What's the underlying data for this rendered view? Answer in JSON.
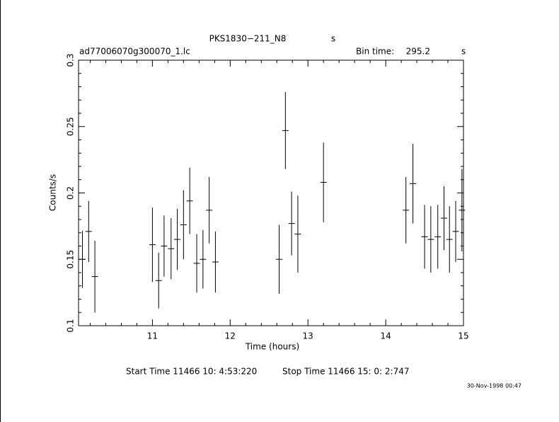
{
  "chart_data": {
    "type": "errorbar",
    "title": "PKS1830−211_N8",
    "title_unit": "s",
    "subtitle": "ad77006070g300070_1.lc",
    "bin_time_label": "Bin time:",
    "bin_time": "295.2",
    "bin_time_unit": "s",
    "xlabel": "Time (hours)",
    "ylabel": "Counts/s",
    "start_time": "Start Time 11466 10: 4:53:220",
    "stop_time": "Stop Time 11466 15: 0: 2:747",
    "date": "30-Nov-1998 00:47",
    "color": "#000000",
    "xlim": [
      10.05,
      15
    ],
    "xticks": [
      11,
      12,
      13,
      14,
      15
    ],
    "ylim": [
      0.1,
      0.3
    ],
    "yticks": [
      0.1,
      0.15,
      0.2,
      0.25,
      0.3
    ],
    "xerr": 0.041,
    "x": [
      10.1,
      10.18,
      10.26,
      11.0,
      11.08,
      11.15,
      11.24,
      11.32,
      11.4,
      11.48,
      11.57,
      11.65,
      11.73,
      11.81,
      12.63,
      12.71,
      12.79,
      12.87,
      13.2,
      14.26,
      14.35,
      14.5,
      14.58,
      14.67,
      14.75,
      14.82,
      14.9,
      14.98
    ],
    "values": [
      0.15,
      0.171,
      0.137,
      0.161,
      0.134,
      0.16,
      0.158,
      0.165,
      0.176,
      0.194,
      0.147,
      0.15,
      0.187,
      0.148,
      0.15,
      0.247,
      0.177,
      0.169,
      0.208,
      0.187,
      0.207,
      0.167,
      0.165,
      0.167,
      0.181,
      0.165,
      0.171,
      0.187
    ],
    "errors": [
      0.0215,
      0.023,
      0.027,
      0.028,
      0.021,
      0.023,
      0.023,
      0.023,
      0.026,
      0.025,
      0.022,
      0.022,
      0.025,
      0.023,
      0.026,
      0.029,
      0.024,
      0.029,
      0.03,
      0.025,
      0.03,
      0.024,
      0.025,
      0.024,
      0.024,
      0.025,
      0.023,
      0.031
    ]
  }
}
